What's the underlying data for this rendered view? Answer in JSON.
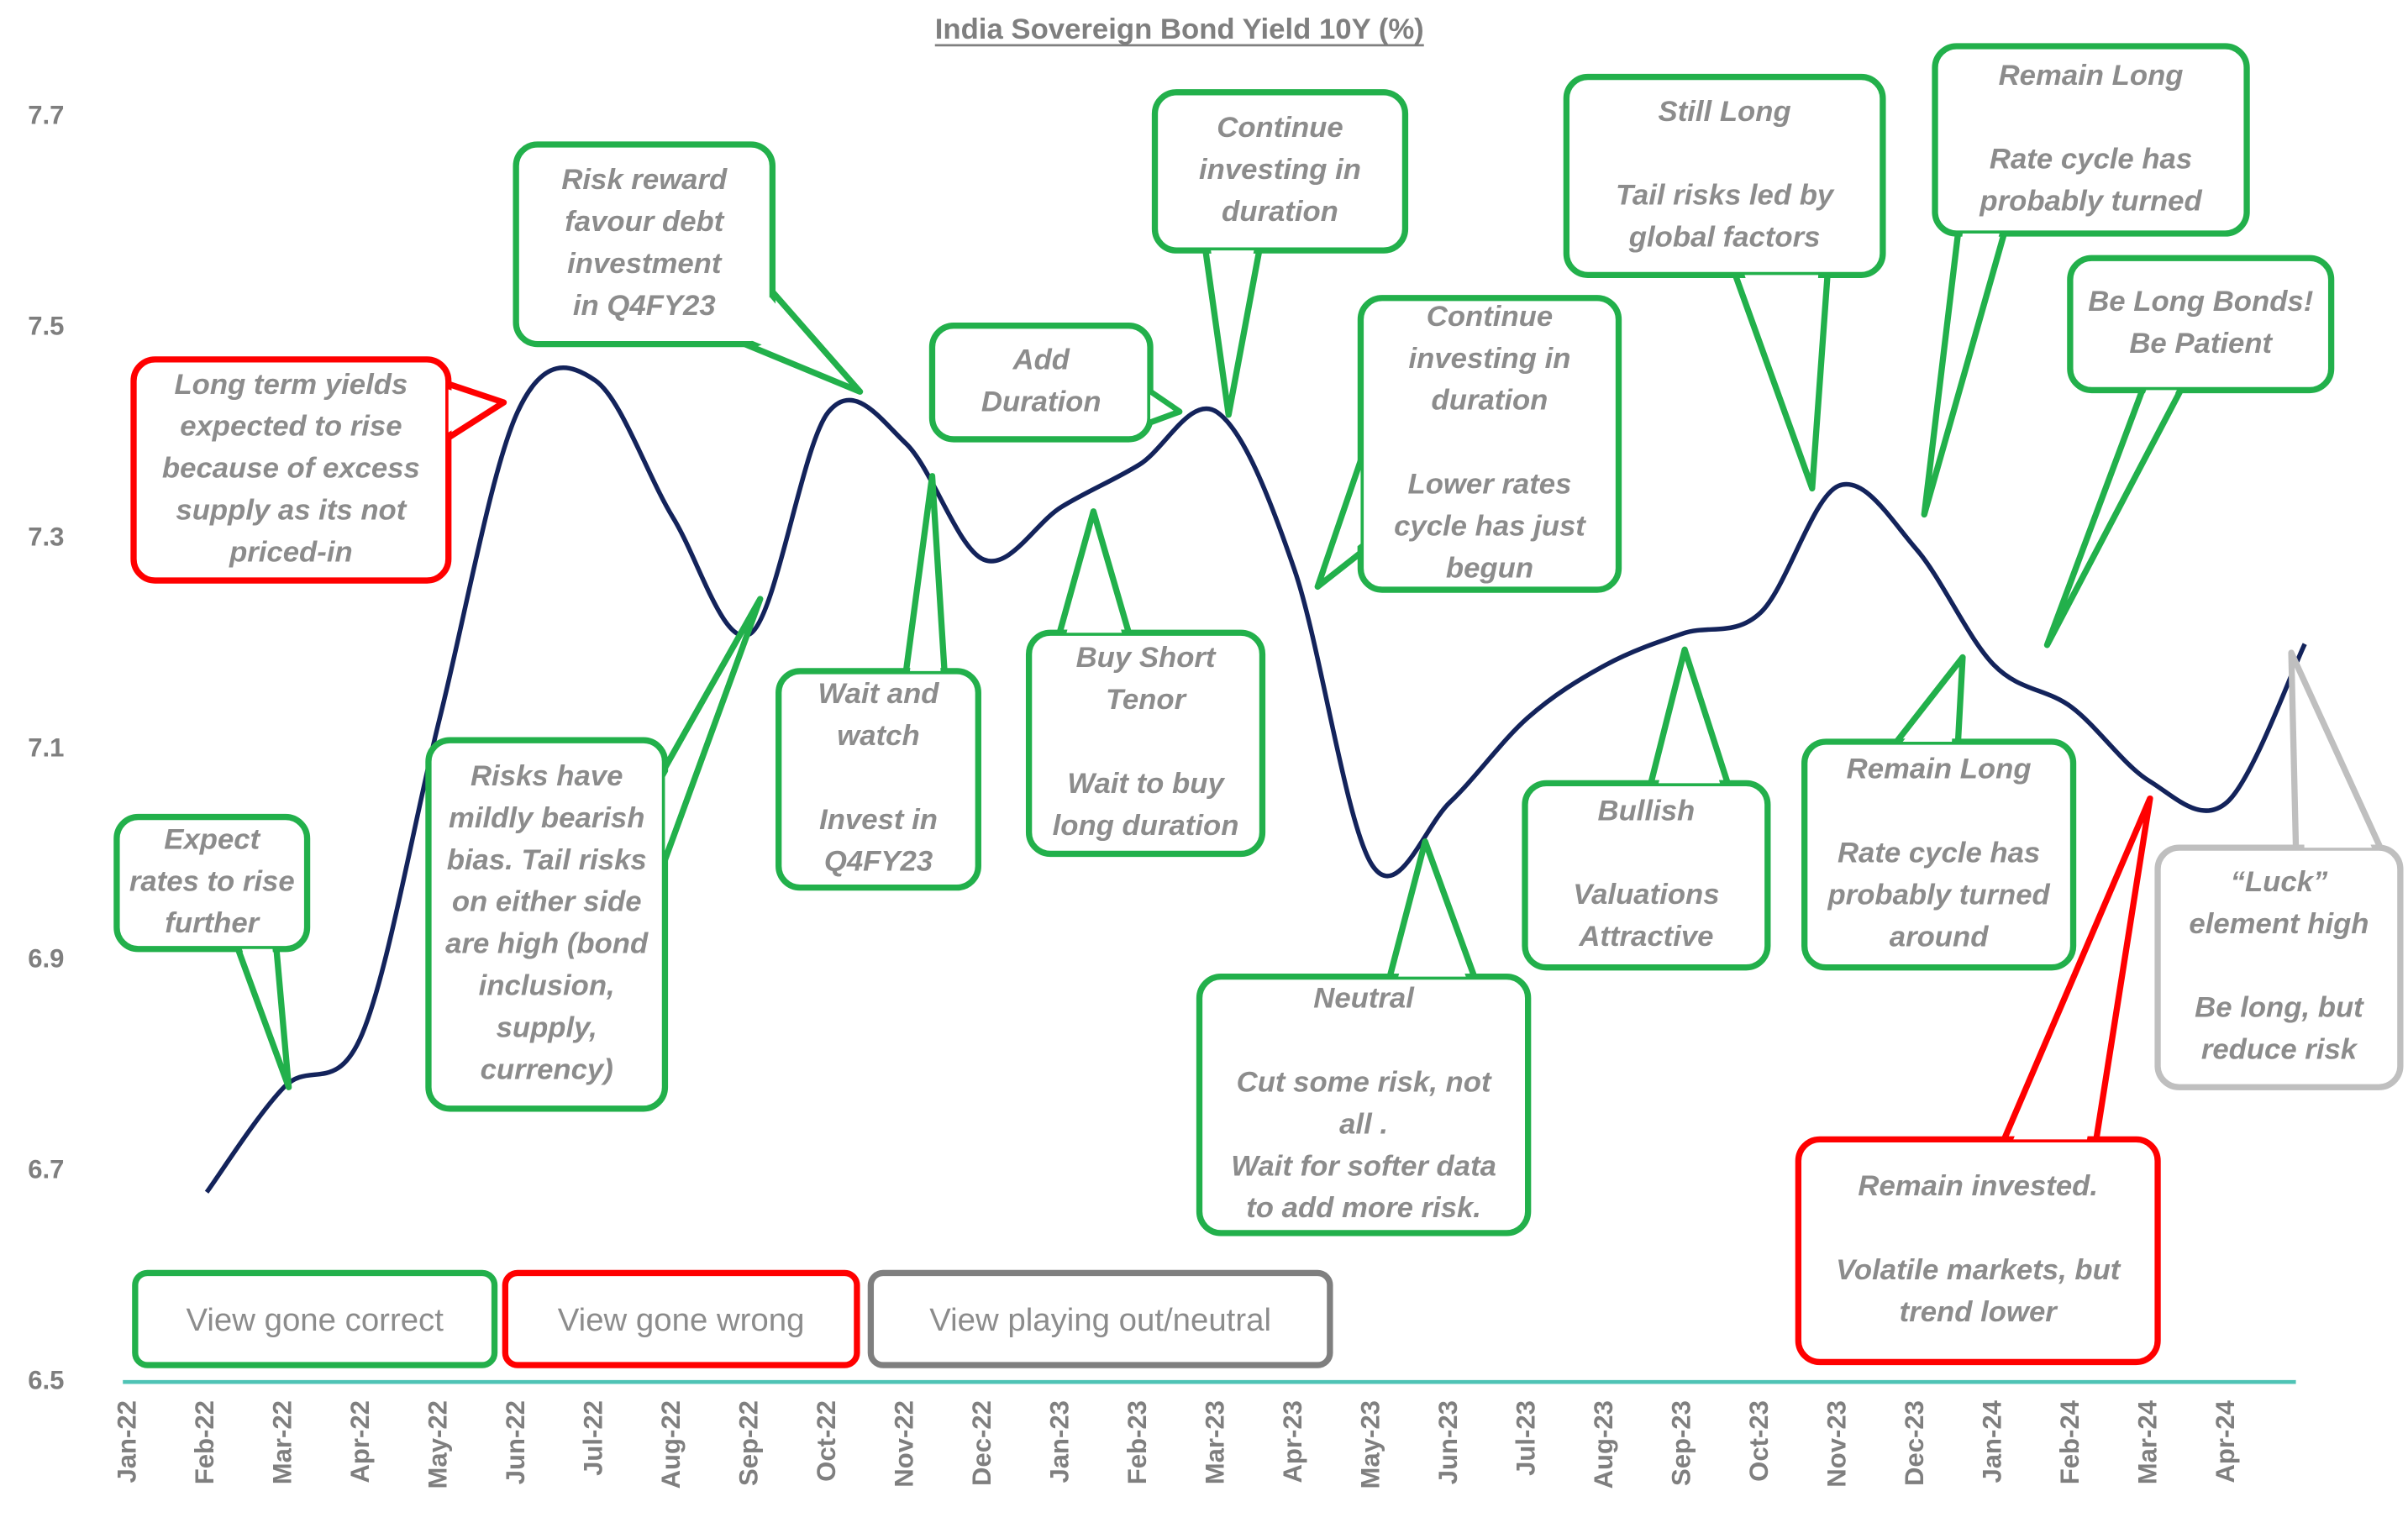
{
  "chart_data": {
    "type": "line",
    "title": "India Sovereign Bond Yield 10Y (%)",
    "categories": [
      "Jan-22",
      "Feb-22",
      "Mar-22",
      "Apr-22",
      "May-22",
      "Jun-22",
      "Jul-22",
      "Aug-22",
      "Sep-22",
      "Oct-22",
      "Nov-22",
      "Dec-22",
      "Jan-23",
      "Feb-23",
      "Mar-23",
      "Apr-23",
      "May-23",
      "Jun-23",
      "Jul-23",
      "Aug-23",
      "Sep-23",
      "Oct-23",
      "Nov-23",
      "Dec-23",
      "Jan-24",
      "Feb-24",
      "Mar-24",
      "Apr-24",
      null
    ],
    "values": [
      null,
      6.68,
      6.78,
      6.83,
      7.13,
      7.42,
      7.45,
      7.32,
      7.21,
      7.42,
      7.39,
      7.28,
      7.33,
      7.37,
      7.42,
      7.27,
      6.99,
      7.05,
      7.13,
      7.18,
      7.21,
      7.23,
      7.35,
      7.29,
      7.18,
      7.14,
      7.07,
      7.05,
      7.2
    ],
    "color": "#13235b",
    "ylim": [
      6.5,
      7.7
    ],
    "yticks": [
      6.5,
      6.7,
      6.9,
      7.1,
      7.3,
      7.5,
      7.7
    ],
    "annotations": [
      {
        "color": "#22b04b",
        "paragraphs": [
          [
            "Expect",
            "rates to rise",
            "further"
          ]
        ]
      },
      {
        "color": "#ff0000",
        "paragraphs": [
          [
            "Long term yields",
            "expected to rise",
            "because of excess",
            "supply as its not",
            "priced-in"
          ]
        ]
      },
      {
        "color": "#22b04b",
        "paragraphs": [
          [
            "Risk reward",
            "favour debt",
            "investment",
            "in Q4FY23"
          ]
        ]
      },
      {
        "color": "#22b04b",
        "paragraphs": [
          [
            "Risks have",
            "mildly bearish",
            "bias. Tail risks",
            "on either side",
            "are high (bond",
            "inclusion,",
            "supply,",
            "currency)"
          ]
        ]
      },
      {
        "color": "#22b04b",
        "paragraphs": [
          [
            "Wait and",
            "watch"
          ],
          [
            "Invest in",
            "Q4FY23"
          ]
        ]
      },
      {
        "color": "#22b04b",
        "paragraphs": [
          [
            "Add",
            "Duration"
          ]
        ]
      },
      {
        "color": "#22b04b",
        "paragraphs": [
          [
            "Buy Short",
            "Tenor"
          ],
          [
            "Wait to buy",
            "long duration"
          ]
        ]
      },
      {
        "color": "#22b04b",
        "paragraphs": [
          [
            "Continue",
            "investing in",
            "duration"
          ]
        ]
      },
      {
        "color": "#22b04b",
        "paragraphs": [
          [
            "Continue",
            "investing in",
            "duration"
          ],
          [
            "Lower rates",
            "cycle has just",
            "begun"
          ]
        ]
      },
      {
        "color": "#22b04b",
        "paragraphs": [
          [
            "Neutral"
          ],
          [
            "Cut some risk, not",
            "all .",
            "Wait for softer data",
            "to add more risk."
          ]
        ]
      },
      {
        "color": "#22b04b",
        "paragraphs": [
          [
            "Still Long"
          ],
          [
            "Tail risks led by",
            "global factors"
          ]
        ]
      },
      {
        "color": "#22b04b",
        "paragraphs": [
          [
            "Bullish"
          ],
          [
            "Valuations",
            "Attractive"
          ]
        ]
      },
      {
        "color": "#22b04b",
        "paragraphs": [
          [
            "Remain Long"
          ],
          [
            "Rate cycle has",
            "probably turned"
          ]
        ]
      },
      {
        "color": "#22b04b",
        "paragraphs": [
          [
            "Be Long Bonds!",
            "Be Patient"
          ]
        ]
      },
      {
        "color": "#22b04b",
        "paragraphs": [
          [
            "Remain Long"
          ],
          [
            "Rate cycle has",
            "probably turned",
            "around"
          ]
        ]
      },
      {
        "color": "#ff0000",
        "paragraphs": [
          [
            "Remain invested."
          ],
          [
            "Volatile markets, but",
            "trend lower"
          ]
        ]
      },
      {
        "color": "#bfbfbf",
        "paragraphs": [
          [
            "“Luck”",
            "element high"
          ],
          [
            "Be long, but",
            "reduce risk"
          ]
        ]
      }
    ],
    "legend_boxes": [
      {
        "name": "View gone correct",
        "color": "#22b04b"
      },
      {
        "name": "View gone wrong",
        "color": "#ff0000"
      },
      {
        "name": "View playing out/neutral",
        "color": "#7f7f7f"
      }
    ]
  }
}
